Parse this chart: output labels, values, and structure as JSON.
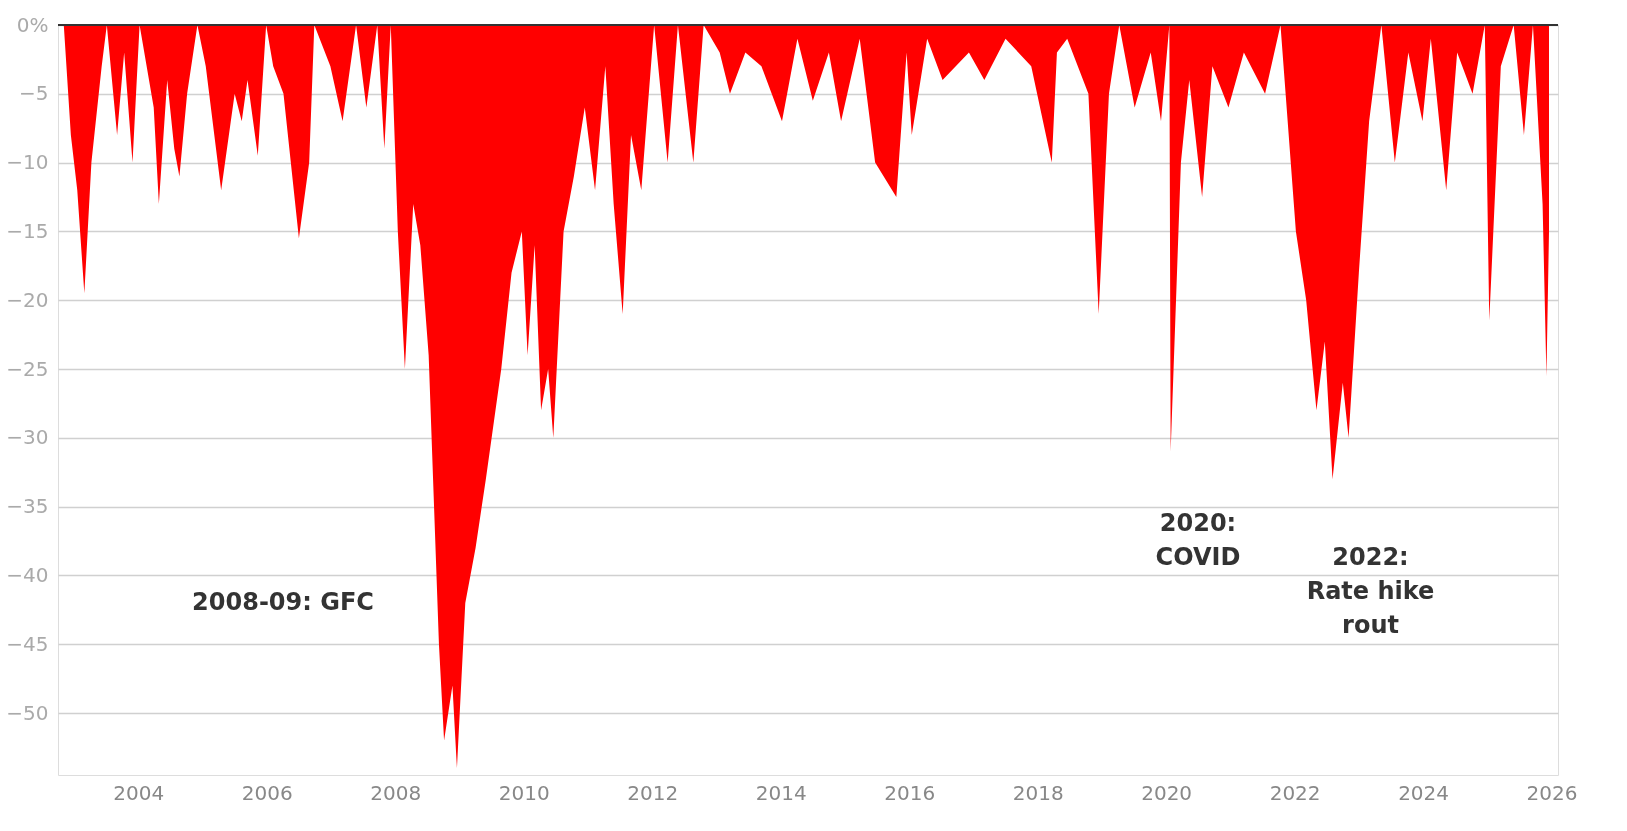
{
  "chart_data": {
    "type": "area",
    "x": [
      2002.84,
      2002.95,
      2003.05,
      2003.16,
      2003.27,
      2003.43,
      2003.51,
      2003.67,
      2003.78,
      2003.91,
      2004.02,
      2004.24,
      2004.32,
      2004.45,
      2004.56,
      2004.64,
      2004.76,
      2004.92,
      2005.05,
      2005.29,
      2005.5,
      2005.61,
      2005.7,
      2005.86,
      2005.99,
      2006.1,
      2006.26,
      2006.5,
      2006.66,
      2006.74,
      2006.99,
      2007.18,
      2007.39,
      2007.55,
      2007.72,
      2007.83,
      2007.93,
      2008.04,
      2008.15,
      2008.28,
      2008.39,
      2008.52,
      2008.68,
      2008.76,
      2008.89,
      2008.96,
      2009.09,
      2009.25,
      2009.41,
      2009.65,
      2009.81,
      2009.97,
      2010.06,
      2010.17,
      2010.27,
      2010.38,
      2010.46,
      2010.62,
      2010.78,
      2010.95,
      2011.11,
      2011.27,
      2011.4,
      2011.54,
      2011.67,
      2011.83,
      2012.03,
      2012.24,
      2012.4,
      2012.64,
      2012.8,
      2013.05,
      2013.21,
      2013.45,
      2013.7,
      2014.02,
      2014.26,
      2014.5,
      2014.75,
      2014.94,
      2015.23,
      2015.47,
      2015.8,
      2015.96,
      2016.04,
      2016.28,
      2016.52,
      2016.93,
      2017.17,
      2017.5,
      2017.9,
      2018.22,
      2018.3,
      2018.46,
      2018.79,
      2018.95,
      2019.11,
      2019.27,
      2019.51,
      2019.76,
      2019.92,
      2020.05,
      2020.07,
      2020.23,
      2020.36,
      2020.56,
      2020.72,
      2020.97,
      2021.21,
      2021.54,
      2021.78,
      2022.02,
      2022.18,
      2022.34,
      2022.47,
      2022.59,
      2022.75,
      2022.84,
      2023.0,
      2023.16,
      2023.35,
      2023.56,
      2023.77,
      2023.99,
      2024.12,
      2024.36,
      2024.53,
      2024.77,
      2024.96,
      2025.03,
      2025.21,
      2025.41,
      2025.57,
      2025.71,
      2025.86,
      2025.92,
      2025.96
    ],
    "values": [
      0,
      -8,
      -12,
      -19.5,
      -10,
      -3,
      0,
      -8,
      -2,
      -10,
      0,
      -6,
      -13,
      -4,
      -9,
      -11,
      -5,
      0,
      -3,
      -12,
      -5,
      -7,
      -4,
      -9.5,
      0,
      -3,
      -5,
      -15.5,
      -10,
      0,
      -3,
      -7,
      0,
      -6,
      0,
      -9,
      0,
      -15,
      -25,
      -13,
      -16,
      -24,
      -45,
      -52,
      -48,
      -54,
      -42,
      -38,
      -33,
      -25,
      -18,
      -15,
      -24,
      -16,
      -28,
      -25,
      -30,
      -15,
      -11,
      -6,
      -12,
      -3,
      -13,
      -21,
      -8,
      -12,
      0,
      -10,
      0,
      -10,
      0,
      -2,
      -5,
      -2,
      -3,
      -7,
      -1,
      -5.5,
      -2,
      -7,
      -1,
      -10,
      -12.5,
      -2,
      -8,
      -1,
      -4,
      -2,
      -4,
      -1,
      -3,
      -10,
      -2,
      -1,
      -5,
      -21,
      -5,
      0,
      -6,
      -2,
      -7,
      0,
      -31,
      -10,
      -4,
      -12.5,
      -3,
      -6,
      -2,
      -5,
      0,
      -15,
      -20,
      -28,
      -23,
      -33,
      -26,
      -30,
      -18,
      -7,
      0,
      -10,
      -2,
      -7,
      -1,
      -12,
      -2,
      -5,
      0,
      -21.5,
      -3,
      0,
      -8,
      0,
      -13,
      -25.5,
      -15
    ],
    "color": "#ff0000",
    "xlim": [
      2002.75,
      2026.1
    ],
    "xticks": [
      2004,
      2006,
      2008,
      2010,
      2012,
      2014,
      2016,
      2018,
      2020,
      2022,
      2024,
      2026
    ],
    "ylim": [
      -54.5,
      0
    ],
    "yticks": [
      {
        "value": 0,
        "label": "0%"
      },
      {
        "value": -5,
        "label": "−5"
      },
      {
        "value": -10,
        "label": "−10"
      },
      {
        "value": -15,
        "label": "−15"
      },
      {
        "value": -20,
        "label": "−20"
      },
      {
        "value": -25,
        "label": "−25"
      },
      {
        "value": -30,
        "label": "−30"
      },
      {
        "value": -35,
        "label": "−35"
      },
      {
        "value": -40,
        "label": "−40"
      },
      {
        "value": -45,
        "label": "−45"
      },
      {
        "value": -50,
        "label": "−50"
      }
    ],
    "grid": "y",
    "ref_lines": [
      {
        "axis": "y",
        "value": 0,
        "color": "#333333"
      }
    ],
    "annotations": [
      "2008-09: GFC",
      "2020:\nCOVID",
      "2022:\nRate hike\nrout"
    ]
  }
}
